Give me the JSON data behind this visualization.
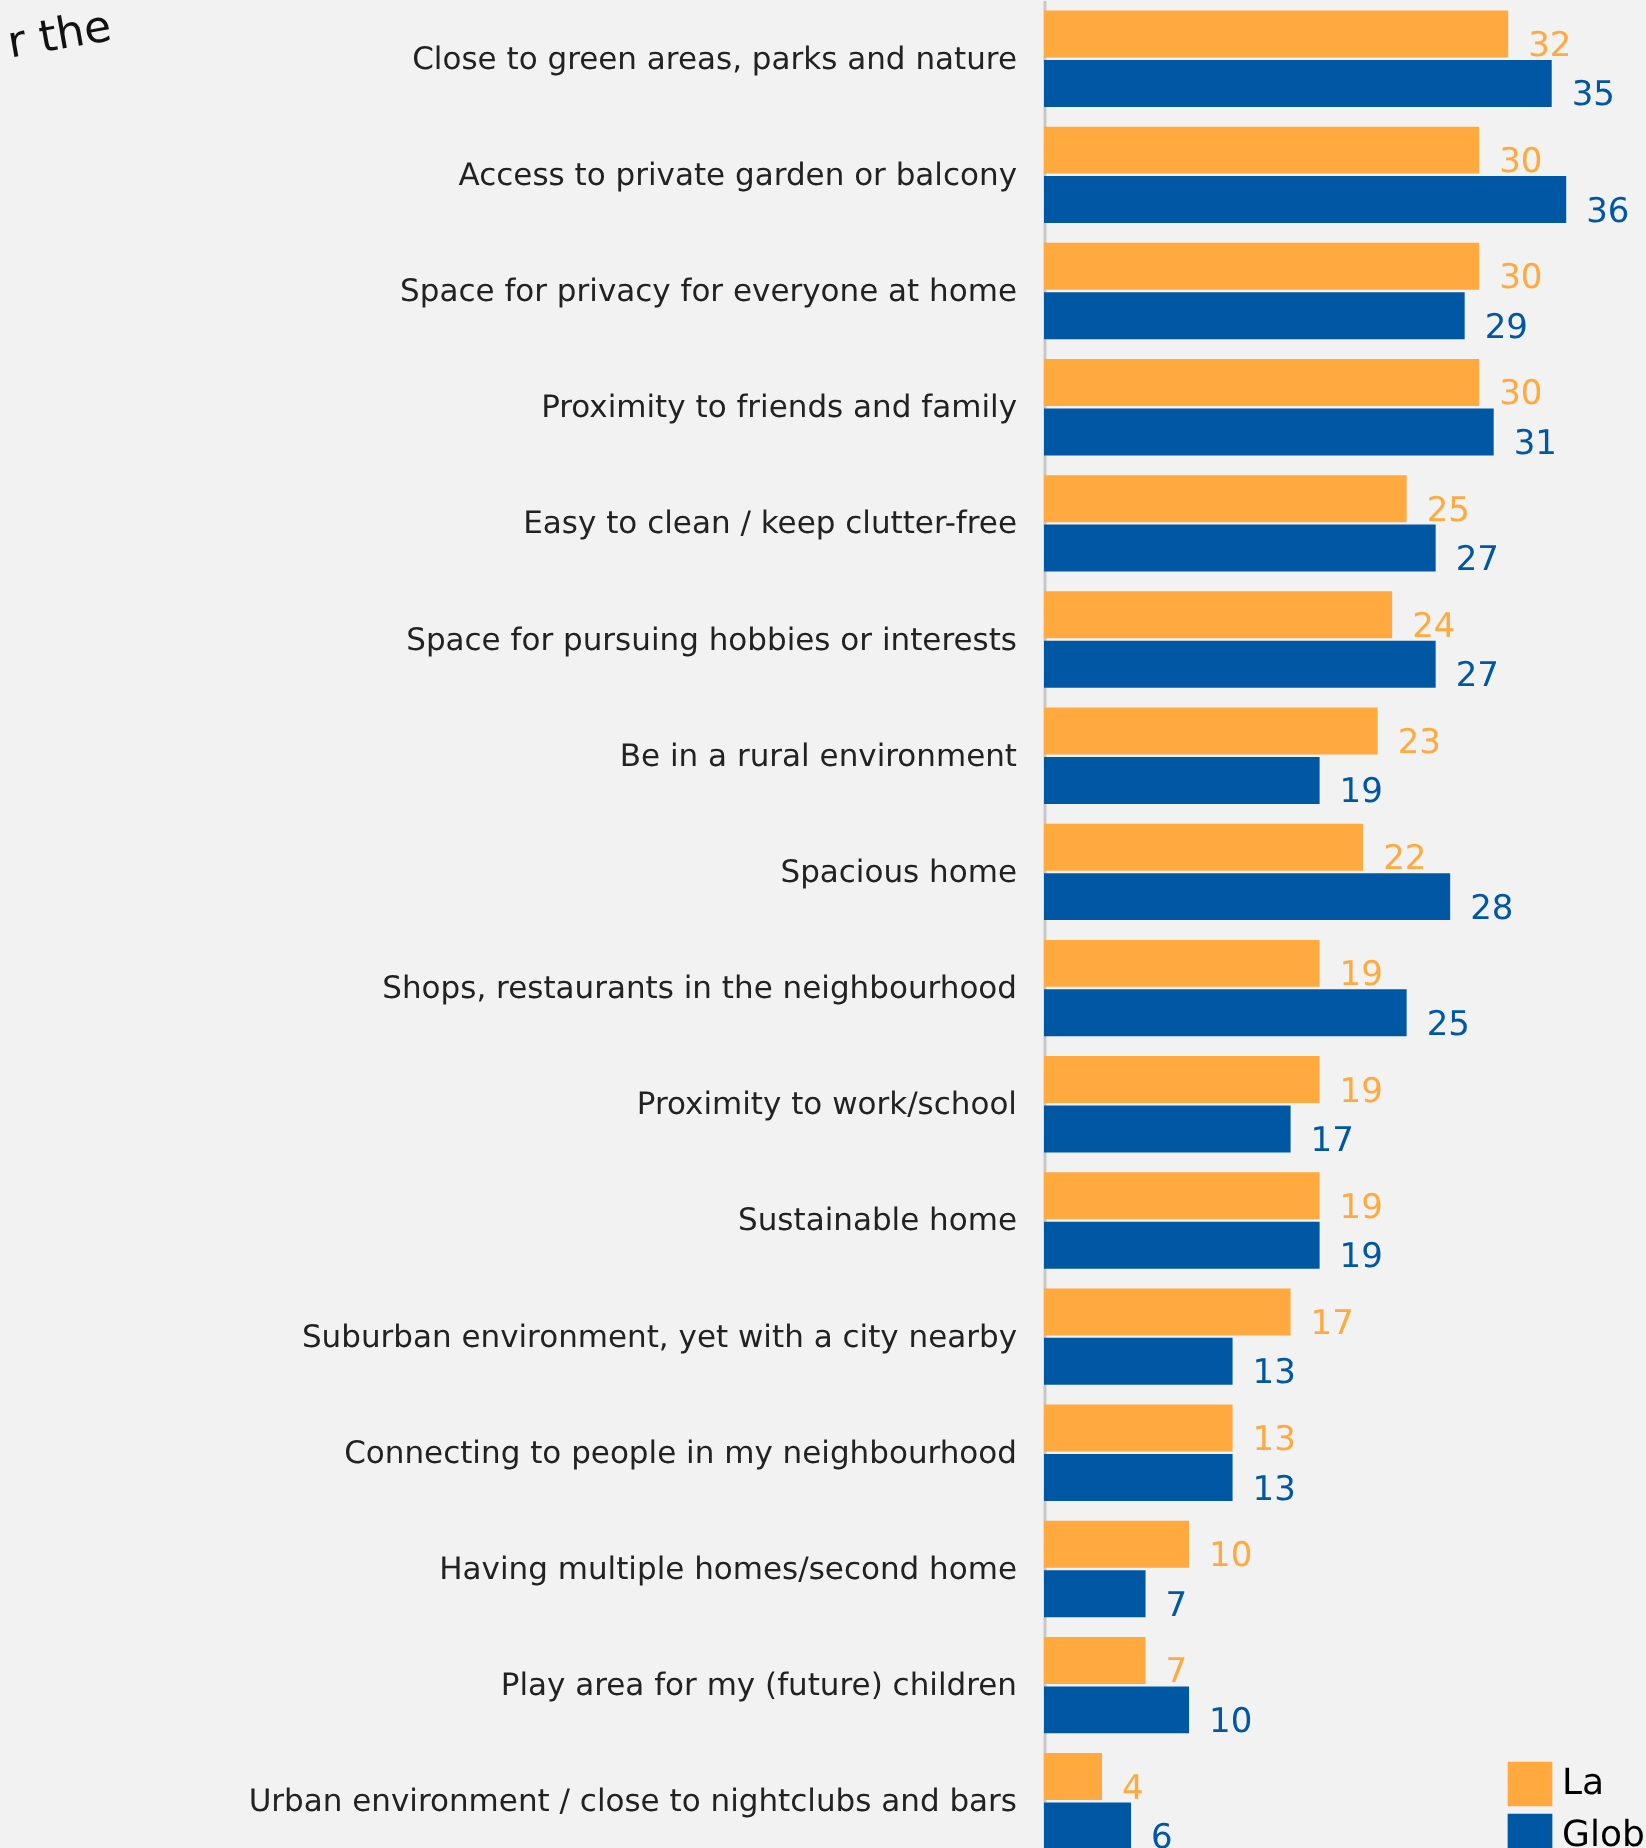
{
  "chart_data": {
    "type": "bar",
    "orientation": "horizontal",
    "data_labels": true,
    "tick_labels": "y",
    "legend": "bottom right",
    "grid": false,
    "xlim": [
      0,
      41.5
    ],
    "categories": [
      "Close to green areas, parks and nature",
      "Access to private garden or balcony",
      "Space for privacy for everyone at home",
      "Proximity to friends and family",
      "Easy to clean / keep clutter-free",
      "Space for pursuing hobbies or interests",
      "Be in a rural environment",
      "Spacious home",
      "Shops, restaurants in the neighbourhood",
      "Proximity to work/school",
      "Sustainable home",
      "Suburban environment, yet with a city nearby",
      "Connecting to people in my neighbourhood",
      "Having multiple homes/second home",
      "Play area for my (future) children",
      "Urban environment / close to nightclubs and bars"
    ],
    "series": [
      {
        "name": "La",
        "color": "#ffa93e",
        "values": [
          32,
          30,
          30,
          30,
          25,
          24,
          23,
          22,
          19,
          19,
          19,
          17,
          13,
          10,
          7,
          4
        ]
      },
      {
        "name": "Glob",
        "color": "#0057a4",
        "values": [
          35,
          36,
          29,
          31,
          27,
          27,
          19,
          28,
          25,
          17,
          19,
          13,
          13,
          7,
          10,
          6
        ]
      }
    ],
    "annotations": [
      "r the"
    ]
  }
}
